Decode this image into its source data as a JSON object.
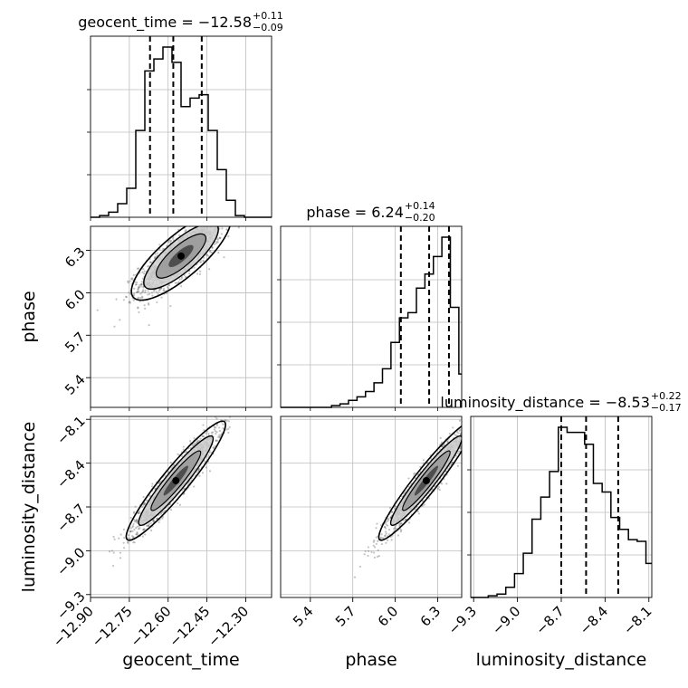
{
  "chart_data": {
    "type": "corner",
    "parameters": [
      "geocent_time",
      "phase",
      "luminosity_distance"
    ],
    "axis_labels": {
      "geocent_time": "geocent_time",
      "phase": "phase",
      "luminosity_distance": "luminosity_distance"
    },
    "ranges": {
      "geocent_time": [
        -12.9,
        -12.2
      ],
      "phase": [
        5.19,
        6.47
      ],
      "luminosity_distance": [
        -9.32,
        -8.08
      ]
    },
    "ticks": {
      "geocent_time": [
        -12.9,
        -12.75,
        -12.6,
        -12.45,
        -12.3
      ],
      "phase": [
        5.4,
        5.7,
        6.0,
        6.3
      ],
      "luminosity_distance": [
        -9.3,
        -9.0,
        -8.7,
        -8.4,
        -8.1
      ]
    },
    "tick_labels": {
      "geocent_time": [
        "−12.90",
        "−12.75",
        "−12.60",
        "−12.45",
        "−12.30"
      ],
      "phase": [
        "5.4",
        "5.7",
        "6.0",
        "6.3"
      ],
      "luminosity_distance": [
        "−9.3",
        "−9.0",
        "−8.7",
        "−8.4",
        "−8.1"
      ]
    },
    "titles": [
      {
        "param": "geocent_time",
        "prefix": "geocent_time = −12.58",
        "upper": "+0.11",
        "lower": "−0.09",
        "median": -12.58,
        "plus": 0.11,
        "minus": 0.09
      },
      {
        "param": "phase",
        "prefix": "phase = 6.24",
        "upper": "+0.14",
        "lower": "−0.20",
        "median": 6.24,
        "plus": 0.14,
        "minus": 0.2
      },
      {
        "param": "luminosity_distance",
        "prefix": "luminosity_distance = −8.53",
        "upper": "+0.22",
        "lower": "−0.17",
        "median": -8.53,
        "plus": 0.22,
        "minus": 0.17
      }
    ],
    "histograms": {
      "geocent_time": {
        "edges": [
          -12.9,
          -12.865,
          -12.83,
          -12.795,
          -12.76,
          -12.725,
          -12.69,
          -12.655,
          -12.62,
          -12.585,
          -12.55,
          -12.515,
          -12.48,
          -12.445,
          -12.41,
          -12.375,
          -12.34,
          -12.305,
          -12.27,
          -12.235,
          -12.2
        ],
        "counts": [
          0.0,
          0.01,
          0.03,
          0.08,
          0.17,
          0.51,
          0.86,
          0.93,
          1.0,
          0.91,
          0.65,
          0.7,
          0.72,
          0.51,
          0.28,
          0.1,
          0.01,
          0.0,
          0.0,
          0.0
        ]
      },
      "phase": {
        "edges": [
          5.19,
          5.25,
          5.31,
          5.37,
          5.43,
          5.49,
          5.55,
          5.61,
          5.67,
          5.73,
          5.79,
          5.85,
          5.91,
          5.97,
          6.03,
          6.09,
          6.15,
          6.21,
          6.27,
          6.33,
          6.39,
          6.45,
          6.47
        ],
        "counts": [
          0.0,
          0.0,
          0.0,
          0.0,
          0.0,
          0.0,
          0.01,
          0.02,
          0.04,
          0.06,
          0.09,
          0.14,
          0.22,
          0.37,
          0.51,
          0.54,
          0.68,
          0.76,
          0.86,
          0.97,
          0.57,
          0.19
        ]
      },
      "luminosity_distance": {
        "edges": [
          -9.32,
          -9.26,
          -9.2,
          -9.14,
          -9.08,
          -9.02,
          -8.96,
          -8.9,
          -8.84,
          -8.78,
          -8.72,
          -8.66,
          -8.6,
          -8.54,
          -8.48,
          -8.42,
          -8.36,
          -8.3,
          -8.24,
          -8.18,
          -8.12,
          -8.08
        ],
        "counts": [
          0.0,
          0.0,
          0.01,
          0.02,
          0.06,
          0.14,
          0.26,
          0.46,
          0.59,
          0.74,
          1.0,
          0.97,
          0.97,
          0.9,
          0.67,
          0.62,
          0.47,
          0.4,
          0.34,
          0.33,
          0.2
        ]
      }
    },
    "joint_2d": [
      {
        "x": "geocent_time",
        "y": "phase",
        "center": [
          -12.55,
          6.26
        ],
        "sd_x": 0.08,
        "sd_y": 0.13,
        "rho": 0.8
      },
      {
        "x": "geocent_time",
        "y": "luminosity_distance",
        "center": [
          -12.57,
          -8.52
        ],
        "sd_x": 0.08,
        "sd_y": 0.17,
        "rho": 0.94
      },
      {
        "x": "phase",
        "y": "luminosity_distance",
        "center": [
          6.22,
          -8.52
        ],
        "sd_x": 0.14,
        "sd_y": 0.17,
        "rho": 0.95
      }
    ],
    "grid": true,
    "legend": "none"
  }
}
